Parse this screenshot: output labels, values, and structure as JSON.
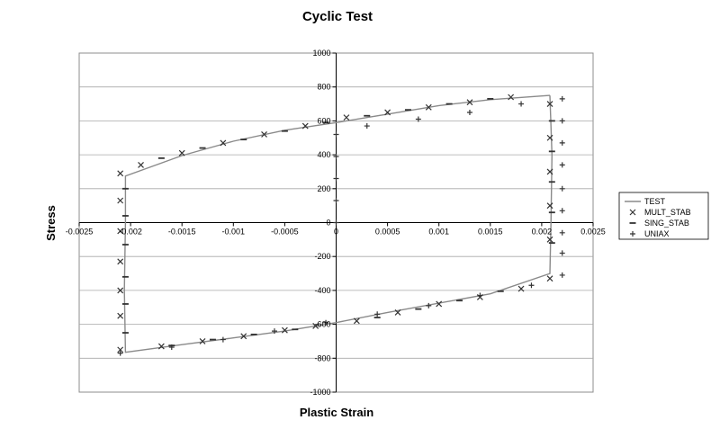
{
  "chart_data": {
    "type": "line",
    "title": "Cyclic Test",
    "xlabel": "Plastic Strain",
    "ylabel": "Stress",
    "xlim": [
      -0.0025,
      0.0025
    ],
    "ylim": [
      -1000,
      1000
    ],
    "x_ticks": [
      "-0.0025",
      "-0.002",
      "-0.0015",
      "-0.001",
      "-0.0005",
      "0",
      "0.0005",
      "0.001",
      "0.0015",
      "0.002",
      "0.0025"
    ],
    "x_tick_values": [
      -0.0025,
      -0.002,
      -0.0015,
      -0.001,
      -0.0005,
      0,
      0.0005,
      0.001,
      0.0015,
      0.002,
      0.0025
    ],
    "y_ticks": [
      "-1000",
      "-800",
      "-600",
      "-400",
      "-200",
      "0",
      "200",
      "400",
      "600",
      "800",
      "1000"
    ],
    "y_tick_values": [
      -1000,
      -800,
      -600,
      -400,
      -200,
      0,
      200,
      400,
      600,
      800,
      1000
    ],
    "grid": "horizontal",
    "legend_position": "right",
    "series": [
      {
        "name": "TEST",
        "marker": "line",
        "color": "#8a8a8a",
        "points": [
          [
            0.00208,
            750
          ],
          [
            0.0021,
            400
          ],
          [
            0.00209,
            0
          ],
          [
            0.00208,
            -300
          ],
          [
            0.0015,
            -420
          ],
          [
            0.0005,
            -530
          ],
          [
            0,
            -590
          ],
          [
            -0.0005,
            -640
          ],
          [
            -0.001,
            -680
          ],
          [
            -0.0015,
            -720
          ],
          [
            -0.00205,
            -765
          ],
          [
            -0.00206,
            -400
          ],
          [
            -0.00205,
            0
          ],
          [
            -0.00205,
            275
          ],
          [
            -0.0015,
            395
          ],
          [
            -0.001,
            480
          ],
          [
            -0.0005,
            545
          ],
          [
            0,
            590
          ],
          [
            0.0005,
            640
          ],
          [
            0.001,
            690
          ],
          [
            0.0015,
            725
          ],
          [
            0.00208,
            750
          ]
        ]
      },
      {
        "name": "MULT_STAB",
        "marker": "x",
        "color": "#333333",
        "points": [
          [
            -0.0021,
            290
          ],
          [
            -0.0021,
            130
          ],
          [
            -0.0021,
            -50
          ],
          [
            -0.0021,
            -230
          ],
          [
            -0.0021,
            -400
          ],
          [
            -0.0021,
            -550
          ],
          [
            -0.0021,
            -750
          ],
          [
            -0.0017,
            -730
          ],
          [
            -0.0013,
            -700
          ],
          [
            -0.0009,
            -670
          ],
          [
            -0.0005,
            -635
          ],
          [
            -0.0002,
            -610
          ],
          [
            0.0002,
            -580
          ],
          [
            0.0006,
            -530
          ],
          [
            0.001,
            -480
          ],
          [
            0.0014,
            -440
          ],
          [
            0.0018,
            -390
          ],
          [
            0.00208,
            -330
          ],
          [
            0.00208,
            -100
          ],
          [
            0.00208,
            100
          ],
          [
            0.00208,
            300
          ],
          [
            0.00208,
            500
          ],
          [
            0.00208,
            700
          ],
          [
            0.0017,
            740
          ],
          [
            0.0013,
            710
          ],
          [
            0.0009,
            680
          ],
          [
            0.0005,
            650
          ],
          [
            0.0001,
            620
          ],
          [
            -0.0003,
            570
          ],
          [
            -0.0007,
            520
          ],
          [
            -0.0011,
            470
          ],
          [
            -0.0015,
            410
          ],
          [
            -0.0019,
            340
          ]
        ]
      },
      {
        "name": "SING_STAB",
        "marker": "dash",
        "color": "#333333",
        "points": [
          [
            -0.00205,
            200
          ],
          [
            -0.00205,
            40
          ],
          [
            -0.00205,
            -130
          ],
          [
            -0.00205,
            -320
          ],
          [
            -0.00205,
            -480
          ],
          [
            -0.00205,
            -650
          ],
          [
            -0.0016,
            -725
          ],
          [
            -0.0012,
            -690
          ],
          [
            -0.0008,
            -660
          ],
          [
            -0.0004,
            -630
          ],
          [
            0.0004,
            -560
          ],
          [
            0.0008,
            -510
          ],
          [
            0.0012,
            -460
          ],
          [
            0.0016,
            -405
          ],
          [
            0.0021,
            -120
          ],
          [
            0.0021,
            60
          ],
          [
            0.0021,
            240
          ],
          [
            0.0021,
            420
          ],
          [
            0.0021,
            600
          ],
          [
            0.0015,
            730
          ],
          [
            0.0011,
            700
          ],
          [
            0.0007,
            665
          ],
          [
            0.0003,
            630
          ],
          [
            -0.0001,
            590
          ],
          [
            -0.0005,
            540
          ],
          [
            -0.0009,
            490
          ],
          [
            -0.0013,
            440
          ],
          [
            -0.0017,
            380
          ]
        ]
      },
      {
        "name": "UNIAX",
        "marker": "plus",
        "color": "#333333",
        "points": [
          [
            0,
            520
          ],
          [
            0,
            390
          ],
          [
            0,
            260
          ],
          [
            0,
            130
          ],
          [
            0,
            0
          ],
          [
            0.0003,
            570
          ],
          [
            0.0008,
            610
          ],
          [
            0.0013,
            650
          ],
          [
            0.0018,
            700
          ],
          [
            0.0022,
            730
          ],
          [
            0.0022,
            600
          ],
          [
            0.0022,
            470
          ],
          [
            0.0022,
            340
          ],
          [
            0.0022,
            200
          ],
          [
            0.0022,
            70
          ],
          [
            0.0022,
            -60
          ],
          [
            0.0022,
            -180
          ],
          [
            0.0022,
            -310
          ],
          [
            0.0019,
            -370
          ],
          [
            0.0014,
            -430
          ],
          [
            0.0009,
            -490
          ],
          [
            0.0004,
            -540
          ],
          [
            -0.0001,
            -590
          ],
          [
            -0.0006,
            -640
          ],
          [
            -0.0011,
            -690
          ],
          [
            -0.0016,
            -735
          ],
          [
            -0.0021,
            -770
          ]
        ]
      }
    ]
  }
}
